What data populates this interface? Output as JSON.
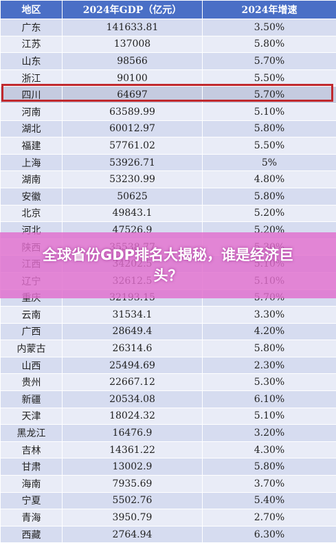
{
  "chart_data": {
    "type": "table",
    "columns": [
      "地区",
      "2024年GDP（亿元）",
      "2024年增速"
    ],
    "rows": [
      [
        "广东",
        "141633.81",
        "3.50%"
      ],
      [
        "江苏",
        "137008",
        "5.80%"
      ],
      [
        "山东",
        "98566",
        "5.70%"
      ],
      [
        "浙江",
        "90100",
        "5.50%"
      ],
      [
        "四川",
        "64697",
        "5.70%"
      ],
      [
        "河南",
        "63589.99",
        "5.10%"
      ],
      [
        "湖北",
        "60012.97",
        "5.80%"
      ],
      [
        "福建",
        "57761.02",
        "5.50%"
      ],
      [
        "上海",
        "53926.71",
        "5%"
      ],
      [
        "湖南",
        "53230.99",
        "4.80%"
      ],
      [
        "安徽",
        "50625",
        "5.80%"
      ],
      [
        "北京",
        "49843.1",
        "5.20%"
      ],
      [
        "河北",
        "47526.9",
        "5.20%"
      ],
      [
        "陕西",
        "35538.77",
        "5.30%"
      ],
      [
        "江西",
        "34202.5",
        "5.10%"
      ],
      [
        "辽宁",
        "32612.5",
        "5.10%"
      ],
      [
        "重庆",
        "32193.15",
        "5.70%"
      ],
      [
        "云南",
        "31534.1",
        "3.30%"
      ],
      [
        "广西",
        "28649.4",
        "4.20%"
      ],
      [
        "内蒙古",
        "26314.6",
        "5.80%"
      ],
      [
        "山西",
        "25494.69",
        "2.30%"
      ],
      [
        "贵州",
        "22667.12",
        "5.30%"
      ],
      [
        "新疆",
        "20534.08",
        "6.10%"
      ],
      [
        "天津",
        "18024.32",
        "5.10%"
      ],
      [
        "黑龙江",
        "16476.9",
        "3.20%"
      ],
      [
        "吉林",
        "14361.22",
        "4.30%"
      ],
      [
        "甘肃",
        "13002.9",
        "5.80%"
      ],
      [
        "海南",
        "7935.69",
        "3.70%"
      ],
      [
        "宁夏",
        "5502.76",
        "5.40%"
      ],
      [
        "青海",
        "3950.79",
        "2.70%"
      ],
      [
        "西藏",
        "2764.94",
        "6.30%"
      ]
    ],
    "highlighted_row": "四川"
  },
  "colors": {
    "header_bg": "#4a6fc6",
    "row_odd": "#d6dcf0",
    "row_even": "#e9ecf7",
    "highlight_border": "#c0282d",
    "banner_bg": "#e16ecd"
  },
  "banner": {
    "text": "全球省份GDP排名大揭秘，谁是经济巨头？"
  }
}
